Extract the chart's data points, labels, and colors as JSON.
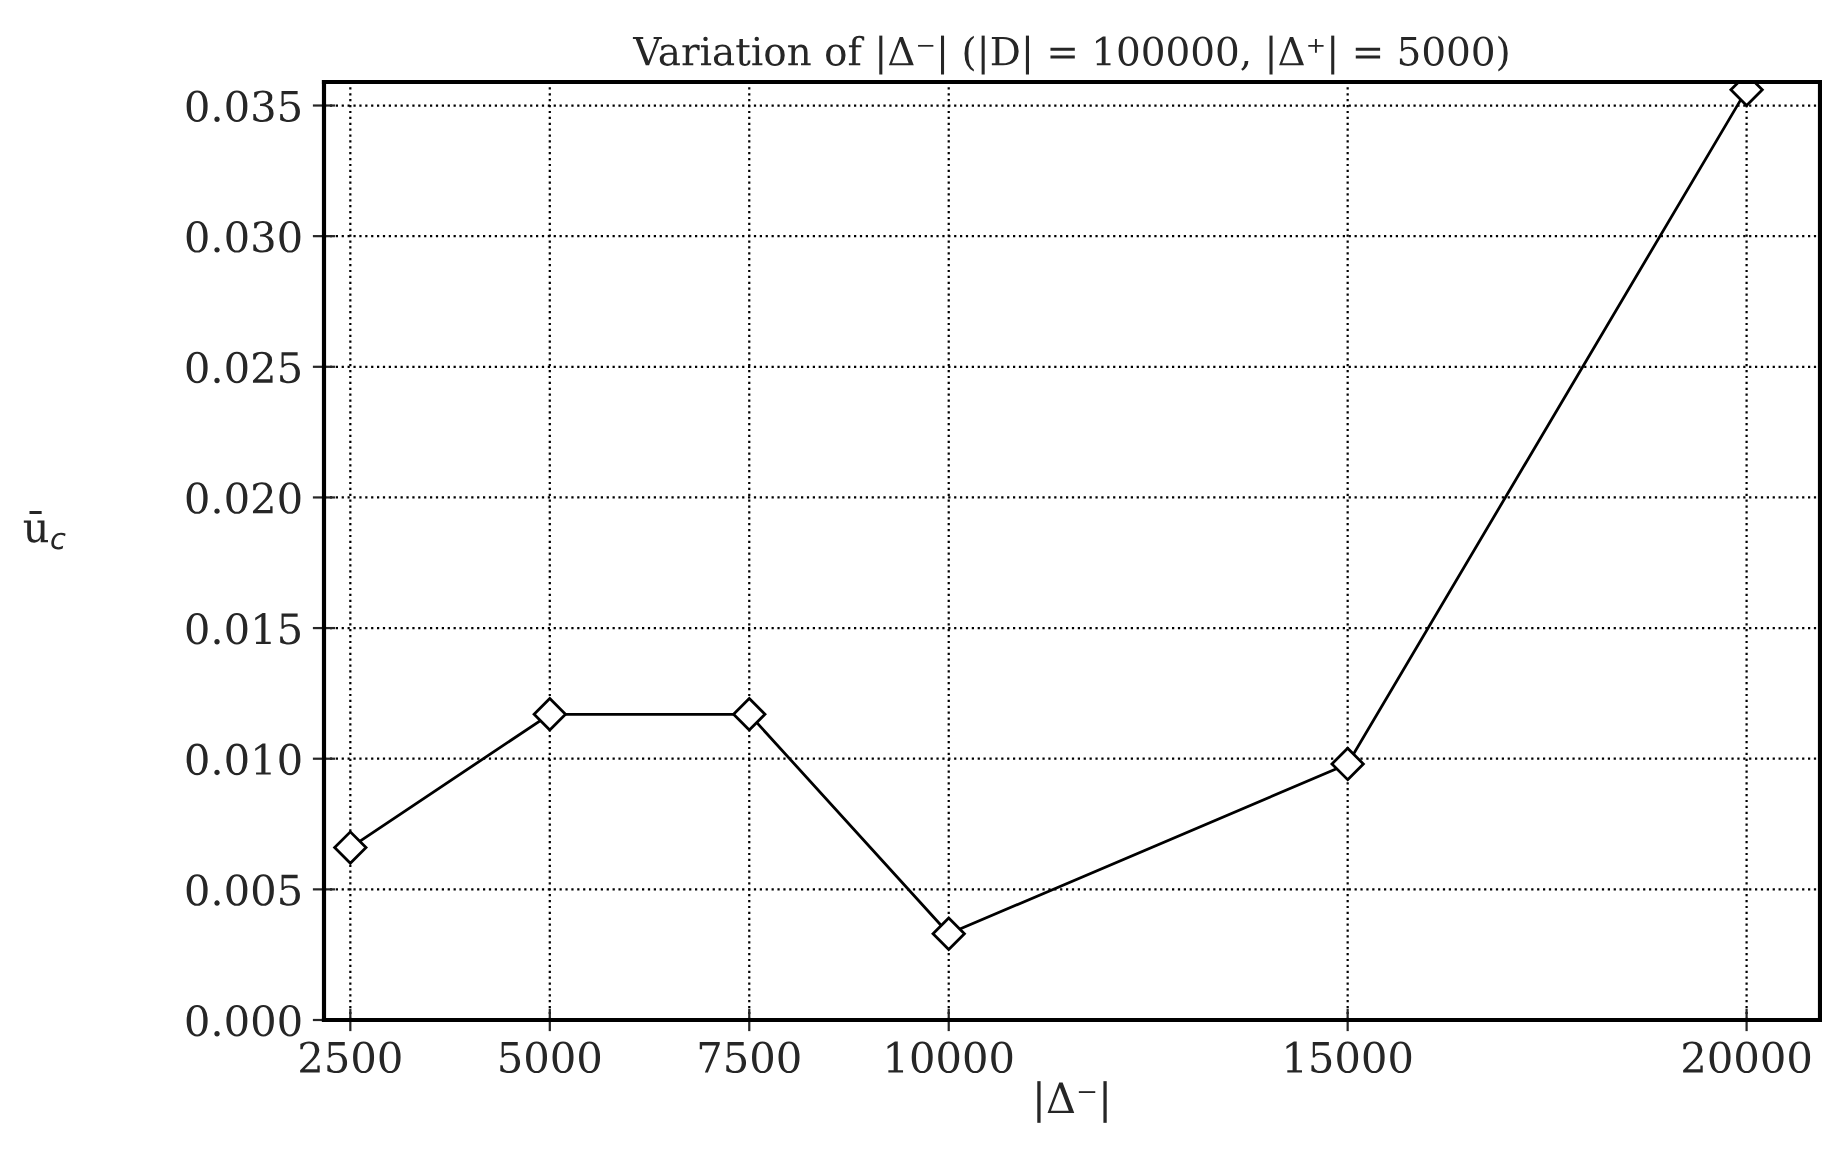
{
  "chart_data": {
    "type": "line",
    "title": "Variation of |Δ⁻| (|D| = 100000, |Δ⁺| = 5000)",
    "xlabel": "|Δ⁻|",
    "ylabel": "ū$_{c}$",
    "x": [
      2500,
      5000,
      7500,
      10000,
      15000,
      20000
    ],
    "series": [
      {
        "color": "#000000",
        "values": [
          0.0066,
          0.0117,
          0.0117,
          0.0033,
          0.0098,
          0.0356
        ]
      }
    ],
    "xlim": [
      2170,
      20920
    ],
    "xticks": [
      2500,
      5000,
      7500,
      10000,
      15000,
      20000
    ],
    "ylim": [
      0,
      0.0359
    ],
    "yticks": [
      {
        "value": 0,
        "label": "0.000"
      },
      {
        "value": 0.005,
        "label": "0.005"
      },
      {
        "value": 0.01,
        "label": "0.010"
      },
      {
        "value": 0.015,
        "label": "0.015"
      },
      {
        "value": 0.02,
        "label": "0.020"
      },
      {
        "value": 0.025,
        "label": "0.025"
      },
      {
        "value": 0.03,
        "label": "0.030"
      },
      {
        "value": 0.035,
        "label": "0.035"
      }
    ],
    "grid": true,
    "marker": "diamond",
    "line_style": "solid"
  }
}
